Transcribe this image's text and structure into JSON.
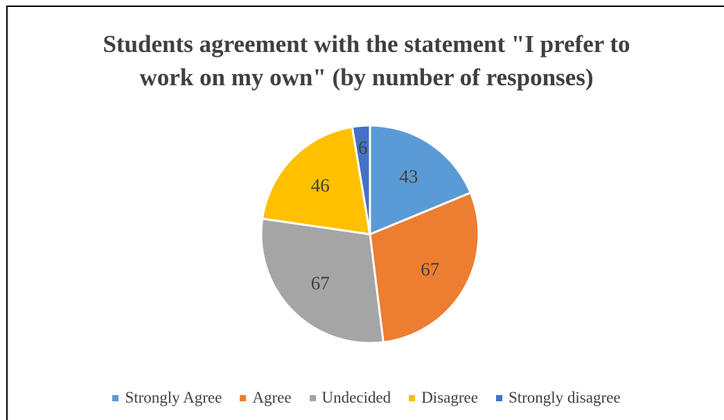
{
  "chart_data": {
    "type": "pie",
    "title": "Students agreement with the statement \"I prefer to work on my own\" (by number of responses)",
    "title_lines": [
      "Students agreement with the statement \"I prefer to",
      "work on my own\" (by number of responses)"
    ],
    "categories": [
      "Strongly Agree",
      "Agree",
      "Undecided",
      "Disagree",
      "Strongly disagree"
    ],
    "values": [
      43,
      67,
      67,
      46,
      6
    ],
    "colors": [
      "#5B9BD5",
      "#ED7D31",
      "#A5A5A5",
      "#FFC000",
      "#4472C4"
    ],
    "data_labels": [
      "43",
      "67",
      "67",
      "46",
      "6"
    ],
    "legend_position": "bottom",
    "start_angle": "12 o'clock, clockwise"
  }
}
